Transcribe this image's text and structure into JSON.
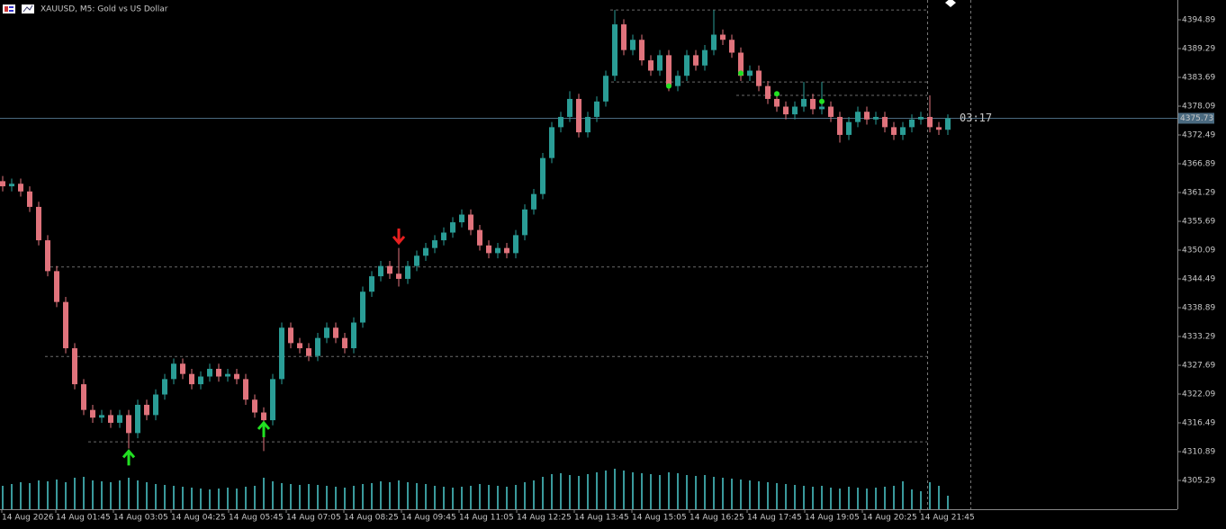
{
  "chart_data": {
    "type": "candlestick",
    "title": "XAUUSD, M5:  Gold vs US Dollar",
    "open": [
      4363.5,
      4362.5,
      4363,
      4361.5,
      4358.5,
      4352,
      4346,
      4340,
      4331,
      4324,
      4319,
      4317.5,
      4318,
      4316.5,
      4318,
      4314.5,
      4320,
      4318,
      4322,
      4325,
      4328,
      4326,
      4324,
      4325.5,
      4327,
      4325.5,
      4326,
      4325,
      4321,
      4318.5,
      4317,
      4325,
      4335,
      4332,
      4331,
      4329.5,
      4333,
      4335,
      4333,
      4331,
      4336,
      4342,
      4345,
      4347,
      4345.5,
      4344.5,
      4347,
      4349,
      4350.5,
      4352,
      4353.5,
      4355.5,
      4357,
      4354,
      4351,
      4349.5,
      4350.5,
      4349.5,
      4353,
      4358,
      4361,
      4368,
      4374,
      4376,
      4379.5,
      4373,
      4376,
      4379,
      4384,
      4394,
      4389,
      4391,
      4387,
      4385,
      4388,
      4382,
      4384,
      4388,
      4386,
      4389,
      4392,
      4391,
      4388.5,
      4384,
      4385,
      4382,
      4379.5,
      4378,
      4376.5,
      4378,
      4379.5,
      4377.5,
      4378,
      4376,
      4372.5,
      4375,
      4377,
      4375.5,
      4376,
      4374,
      4372.5,
      4374,
      4375.5,
      4376,
      4374,
      4373.5
    ],
    "high": [
      4364.5,
      4364,
      4364,
      4362.5,
      4359.5,
      4353,
      4347,
      4341,
      4332,
      4325,
      4320,
      4319,
      4319,
      4319,
      4319,
      4321,
      4321,
      4323,
      4326,
      4329,
      4329,
      4327,
      4326.5,
      4328,
      4328,
      4327,
      4327,
      4326,
      4322,
      4319.5,
      4326,
      4336,
      4336,
      4333,
      4332,
      4334,
      4336,
      4336,
      4334,
      4337,
      4343,
      4346,
      4348,
      4348,
      4350.5,
      4348,
      4350,
      4351.5,
      4353,
      4354.5,
      4356.5,
      4358,
      4358,
      4355,
      4352,
      4351.5,
      4351.5,
      4354,
      4359,
      4362,
      4369,
      4375,
      4377,
      4381,
      4380.5,
      4377,
      4380,
      4385,
      4396.8,
      4395,
      4392,
      4392,
      4388,
      4389,
      4389,
      4385,
      4389,
      4389,
      4390,
      4396.8,
      4393,
      4392,
      4389.5,
      4386,
      4386,
      4383,
      4380.5,
      4379,
      4379,
      4382.8,
      4380.5,
      4382.8,
      4379,
      4377,
      4376,
      4378,
      4378,
      4377,
      4377,
      4375,
      4375,
      4376.5,
      4377,
      4380.2,
      4375,
      4376.5
    ],
    "low": [
      4361.5,
      4361.5,
      4360.5,
      4357.5,
      4351,
      4345,
      4339,
      4330,
      4323,
      4318,
      4316.5,
      4316.5,
      4315.5,
      4315.5,
      4311.5,
      4313.5,
      4317,
      4317,
      4321,
      4324,
      4325,
      4323,
      4323,
      4324.5,
      4324.5,
      4324.5,
      4324,
      4320,
      4317.5,
      4311,
      4316,
      4324,
      4331,
      4330,
      4328.5,
      4328.5,
      4332,
      4332,
      4330,
      4330,
      4335,
      4341,
      4344,
      4344.5,
      4343,
      4343.5,
      4346,
      4348,
      4349.5,
      4351,
      4352.5,
      4354.5,
      4353,
      4350,
      4348.5,
      4348.5,
      4348.5,
      4348.5,
      4352,
      4357,
      4360,
      4367,
      4373,
      4375,
      4372,
      4372,
      4375,
      4378,
      4383,
      4388,
      4388,
      4386,
      4384,
      4384,
      4381,
      4381,
      4383,
      4385,
      4385,
      4388,
      4390,
      4387.5,
      4383,
      4383,
      4381,
      4378.5,
      4377,
      4375.5,
      4375.5,
      4377,
      4376.5,
      4376.5,
      4375,
      4371,
      4371.5,
      4374,
      4374.5,
      4374.5,
      4373,
      4371.5,
      4371.5,
      4373,
      4374.5,
      4373,
      4372.5,
      4372.5
    ],
    "close": [
      4362.5,
      4363,
      4361.5,
      4358.5,
      4352,
      4346,
      4340,
      4331,
      4324,
      4319,
      4317.5,
      4318,
      4316.5,
      4318,
      4314.5,
      4320,
      4318,
      4322,
      4325,
      4328,
      4326,
      4324,
      4325.5,
      4327,
      4325.5,
      4326,
      4325,
      4321,
      4318.5,
      4317,
      4325,
      4335,
      4332,
      4331,
      4329.5,
      4333,
      4335,
      4333,
      4331,
      4336,
      4342,
      4345,
      4347,
      4345.5,
      4344.5,
      4347,
      4349,
      4350.5,
      4352,
      4353.5,
      4355.5,
      4357,
      4354,
      4351,
      4349.5,
      4350.5,
      4349.5,
      4353,
      4358,
      4361,
      4368,
      4374,
      4376,
      4379.5,
      4373,
      4376,
      4379,
      4384,
      4394,
      4389,
      4391,
      4387,
      4385,
      4388,
      4382,
      4384,
      4388,
      4386,
      4389,
      4392,
      4391,
      4388.5,
      4384,
      4385,
      4382,
      4379.5,
      4378,
      4376.5,
      4378,
      4379.5,
      4377.5,
      4378,
      4376,
      4372.5,
      4375,
      4377,
      4375.5,
      4376,
      4374,
      4372.5,
      4374,
      4375.5,
      4376,
      4374,
      4373.5,
      4375.73
    ],
    "volume": [
      520,
      560,
      600,
      580,
      640,
      620,
      660,
      600,
      700,
      720,
      640,
      620,
      600,
      640,
      700,
      640,
      600,
      560,
      540,
      520,
      500,
      480,
      460,
      440,
      460,
      480,
      460,
      500,
      520,
      700,
      620,
      580,
      560,
      540,
      560,
      540,
      520,
      500,
      480,
      520,
      560,
      580,
      620,
      600,
      640,
      600,
      580,
      560,
      520,
      500,
      480,
      500,
      520,
      560,
      540,
      520,
      500,
      540,
      600,
      640,
      720,
      780,
      800,
      760,
      740,
      780,
      820,
      860,
      900,
      860,
      820,
      800,
      780,
      760,
      820,
      800,
      760,
      740,
      760,
      720,
      700,
      680,
      660,
      640,
      620,
      600,
      580,
      560,
      540,
      520,
      500,
      520,
      480,
      460,
      500,
      480,
      460,
      480,
      500,
      520,
      620,
      440,
      400,
      600,
      520,
      300
    ],
    "candle_colors": {
      "up": "#2a9d96",
      "down": "#e0737c"
    },
    "volume_color": "#3a9a9c",
    "ylim": [
      4299.69,
      4398.74
    ],
    "yticks": [
      4394.89,
      4389.29,
      4383.69,
      4378.09,
      4372.49,
      4366.89,
      4361.29,
      4355.69,
      4350.09,
      4344.49,
      4338.89,
      4333.29,
      4327.69,
      4322.09,
      4316.49,
      4310.89,
      4305.29
    ],
    "xticks": [
      {
        "value": -0.1,
        "label": "14 Aug 2026"
      },
      {
        "value": 5.9,
        "label": "14 Aug 01:45"
      },
      {
        "value": 12.3,
        "label": "14 Aug 03:05"
      },
      {
        "value": 18.7,
        "label": "14 Aug 04:25"
      },
      {
        "value": 25.1,
        "label": "14 Aug 05:45"
      },
      {
        "value": 31.5,
        "label": "14 Aug 07:05"
      },
      {
        "value": 37.9,
        "label": "14 Aug 08:25"
      },
      {
        "value": 44.3,
        "label": "14 Aug 09:45"
      },
      {
        "value": 50.7,
        "label": "14 Aug 11:05"
      },
      {
        "value": 57.1,
        "label": "14 Aug 12:25"
      },
      {
        "value": 63.5,
        "label": "14 Aug 13:45"
      },
      {
        "value": 69.9,
        "label": "14 Aug 15:05"
      },
      {
        "value": 76.3,
        "label": "14 Aug 16:25"
      },
      {
        "value": 82.7,
        "label": "14 Aug 17:45"
      },
      {
        "value": 89.1,
        "label": "14 Aug 19:05"
      },
      {
        "value": 95.5,
        "label": "14 Aug 20:25"
      },
      {
        "value": 101.9,
        "label": "14 Aug 21:45"
      }
    ],
    "levels": [
      {
        "price": 4396.8,
        "from": 67.5
      },
      {
        "price": 4382.8,
        "from": 67
      },
      {
        "price": 4380.2,
        "from": 81.5
      },
      {
        "price": 4346.8,
        "from": 4.7
      },
      {
        "price": 4329.4,
        "from": 4.7
      },
      {
        "price": 4312.8,
        "from": 9.5
      }
    ],
    "arrows": [
      {
        "index": 14,
        "price": 4311,
        "dir": "up",
        "color": "#22e022"
      },
      {
        "index": 29,
        "price": 4316.5,
        "dir": "up",
        "color": "#22e022"
      },
      {
        "index": 44,
        "price": 4351.5,
        "dir": "down",
        "color": "#e82020"
      }
    ],
    "dots": [
      {
        "index": 74,
        "price": 4382,
        "color": "#22e022"
      },
      {
        "index": 82,
        "price": 4384.5,
        "color": "#22e022"
      },
      {
        "index": 86,
        "price": 4380.5,
        "color": "#22e022"
      },
      {
        "index": 91,
        "price": 4379,
        "color": "#22e022"
      }
    ],
    "last_price": 4375.73,
    "countdown": "03:17"
  }
}
